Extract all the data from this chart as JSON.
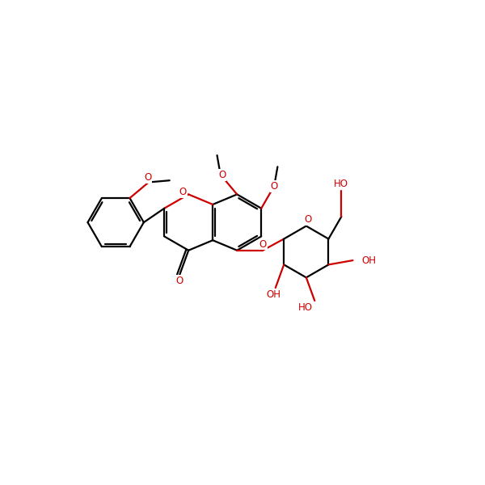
{
  "bg_color": "#ffffff",
  "bond_color": "#000000",
  "heteroatom_color": "#cc0000",
  "lw": 1.6,
  "fs": 8.5,
  "figsize": [
    6.0,
    6.0
  ],
  "dpi": 100,
  "xlim": [
    -1,
    11
  ],
  "ylim": [
    -1,
    11
  ]
}
